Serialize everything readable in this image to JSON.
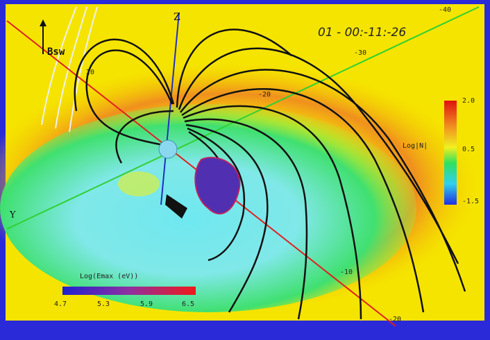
{
  "timestamp": "01 - 00:-11:-26",
  "axes": {
    "z": "Z",
    "y": "Y"
  },
  "bsw_label": "Bsw",
  "density_colorbar": {
    "title": "Log|N|",
    "ticks": [
      "2.0",
      "0.5",
      "-1.5"
    ]
  },
  "energy_colorbar": {
    "title": "Log(Emax (eV))",
    "ticks": [
      "4.7",
      "5.3",
      "5.9",
      "6.5"
    ]
  },
  "axis_ticks": [
    "-40",
    "-30",
    "-20",
    "20",
    "-10",
    "-20"
  ]
}
